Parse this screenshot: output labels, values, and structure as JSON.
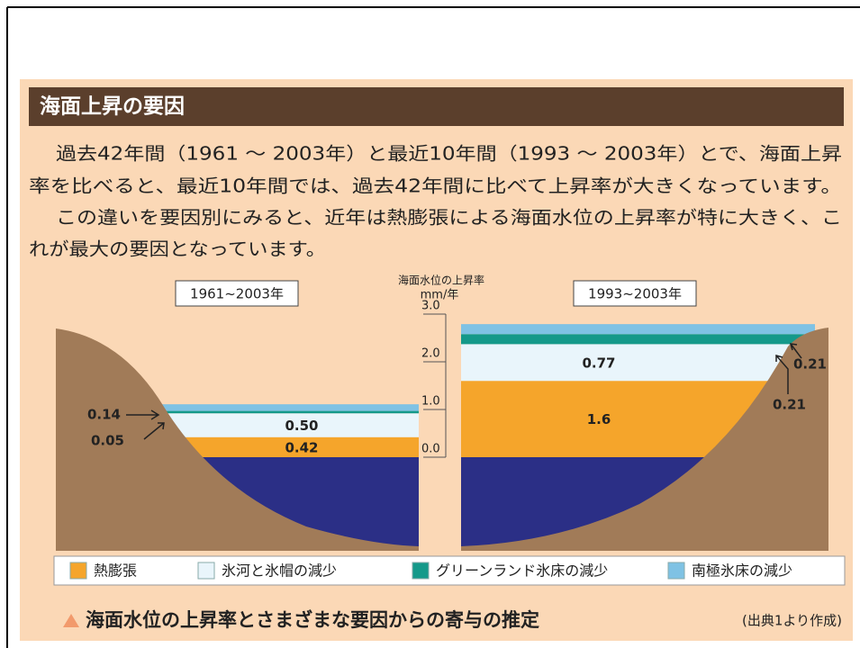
{
  "header": {
    "title": "海面上昇の要因"
  },
  "paragraphs": [
    [
      "過去42年間（1961 ～ 2003年）と最近10年間（1993 ～ 2003年）とで、海面上昇",
      "率を比べると、最近10年間では、過去42年間に比べて上昇率が大きくなっています。"
    ],
    [
      "この違いを要因別にみると、近年は熱膨張による海面水位の上昇率が特に大きく、こ",
      "れが最大の要因となっています。"
    ]
  ],
  "chart_data": {
    "type": "stacked_bar",
    "ylabel": "海面水位の上昇率",
    "ylabel_unit": "mm/年",
    "categories": [
      "1961~2003年",
      "1993~2003年"
    ],
    "ylim": [
      0,
      3
    ],
    "yticks": [
      {
        "value": 0,
        "label": "0.0"
      },
      {
        "value": 1,
        "label": "1.0"
      },
      {
        "value": 2,
        "label": "2.0"
      },
      {
        "value": 3,
        "label": "3.0"
      }
    ],
    "series": [
      {
        "name": "熱膨張",
        "color": "#f5a52b",
        "values": [
          0.42,
          1.6
        ],
        "value_labels": [
          "0.42",
          "1.6"
        ]
      },
      {
        "name": "氷河と氷帽の減少",
        "color": "#e9f5fb",
        "values": [
          0.5,
          0.77
        ],
        "value_labels": [
          "0.50",
          "0.77"
        ]
      },
      {
        "name": "グリーンランド氷床の減少",
        "color": "#14998a",
        "values": [
          0.05,
          0.21
        ],
        "value_labels": [
          "0.05",
          "0.21"
        ]
      },
      {
        "name": "南極氷床の減少",
        "color": "#7fc2e4",
        "values": [
          0.14,
          0.21
        ],
        "value_labels": [
          "0.14",
          "0.21"
        ]
      }
    ]
  },
  "caption": "海面水位の上昇率とさまざまな要因からの寄与の推定",
  "source": "(出典1より作成)"
}
